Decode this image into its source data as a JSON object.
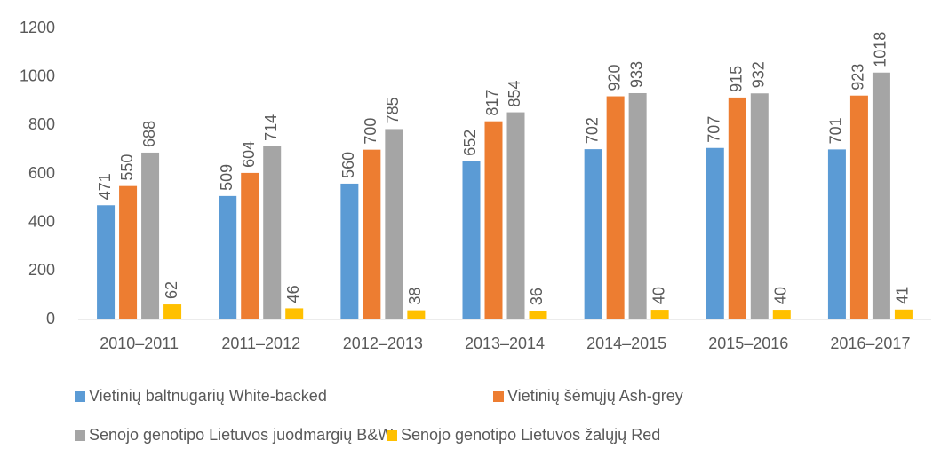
{
  "chart_data": {
    "type": "bar",
    "categories": [
      "2010–2011",
      "2011–2012",
      "2012–2013",
      "2013–2014",
      "2014–2015",
      "2015–2016",
      "2016–2017"
    ],
    "series": [
      {
        "name": "Vietinių baltnugarių White-backed",
        "color": "#5b9bd5",
        "values": [
          471,
          509,
          560,
          652,
          702,
          707,
          701
        ]
      },
      {
        "name": "Vietinių šėmųjų Ash-grey",
        "color": "#ed7d31",
        "values": [
          550,
          604,
          700,
          817,
          920,
          915,
          923
        ]
      },
      {
        "name": "Senojo genotipo Lietuvos juodmargių B&W",
        "color": "#a5a5a5",
        "values": [
          688,
          714,
          785,
          854,
          933,
          932,
          1018
        ]
      },
      {
        "name": "Senojo genotipo Lietuvos žalųjų Red",
        "color": "#ffc000",
        "values": [
          62,
          46,
          38,
          36,
          40,
          40,
          41
        ]
      }
    ],
    "ylim": [
      0,
      1200
    ],
    "yticks": [
      0,
      200,
      400,
      600,
      800,
      1000,
      1200
    ],
    "grid": false
  }
}
